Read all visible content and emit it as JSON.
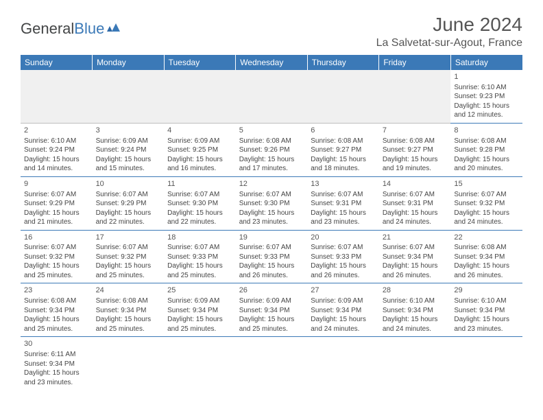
{
  "logo": {
    "text1": "General",
    "text2": "Blue"
  },
  "title": "June 2024",
  "location": "La Salvetat-sur-Agout, France",
  "colors": {
    "header_bg": "#3b79b7",
    "header_fg": "#ffffff",
    "text": "#444444",
    "blank_bg": "#f0f0f0"
  },
  "daynames": [
    "Sunday",
    "Monday",
    "Tuesday",
    "Wednesday",
    "Thursday",
    "Friday",
    "Saturday"
  ],
  "weeks": [
    [
      null,
      null,
      null,
      null,
      null,
      null,
      {
        "n": "1",
        "sr": "Sunrise: 6:10 AM",
        "ss": "Sunset: 9:23 PM",
        "d1": "Daylight: 15 hours",
        "d2": "and 12 minutes."
      }
    ],
    [
      {
        "n": "2",
        "sr": "Sunrise: 6:10 AM",
        "ss": "Sunset: 9:24 PM",
        "d1": "Daylight: 15 hours",
        "d2": "and 14 minutes."
      },
      {
        "n": "3",
        "sr": "Sunrise: 6:09 AM",
        "ss": "Sunset: 9:24 PM",
        "d1": "Daylight: 15 hours",
        "d2": "and 15 minutes."
      },
      {
        "n": "4",
        "sr": "Sunrise: 6:09 AM",
        "ss": "Sunset: 9:25 PM",
        "d1": "Daylight: 15 hours",
        "d2": "and 16 minutes."
      },
      {
        "n": "5",
        "sr": "Sunrise: 6:08 AM",
        "ss": "Sunset: 9:26 PM",
        "d1": "Daylight: 15 hours",
        "d2": "and 17 minutes."
      },
      {
        "n": "6",
        "sr": "Sunrise: 6:08 AM",
        "ss": "Sunset: 9:27 PM",
        "d1": "Daylight: 15 hours",
        "d2": "and 18 minutes."
      },
      {
        "n": "7",
        "sr": "Sunrise: 6:08 AM",
        "ss": "Sunset: 9:27 PM",
        "d1": "Daylight: 15 hours",
        "d2": "and 19 minutes."
      },
      {
        "n": "8",
        "sr": "Sunrise: 6:08 AM",
        "ss": "Sunset: 9:28 PM",
        "d1": "Daylight: 15 hours",
        "d2": "and 20 minutes."
      }
    ],
    [
      {
        "n": "9",
        "sr": "Sunrise: 6:07 AM",
        "ss": "Sunset: 9:29 PM",
        "d1": "Daylight: 15 hours",
        "d2": "and 21 minutes."
      },
      {
        "n": "10",
        "sr": "Sunrise: 6:07 AM",
        "ss": "Sunset: 9:29 PM",
        "d1": "Daylight: 15 hours",
        "d2": "and 22 minutes."
      },
      {
        "n": "11",
        "sr": "Sunrise: 6:07 AM",
        "ss": "Sunset: 9:30 PM",
        "d1": "Daylight: 15 hours",
        "d2": "and 22 minutes."
      },
      {
        "n": "12",
        "sr": "Sunrise: 6:07 AM",
        "ss": "Sunset: 9:30 PM",
        "d1": "Daylight: 15 hours",
        "d2": "and 23 minutes."
      },
      {
        "n": "13",
        "sr": "Sunrise: 6:07 AM",
        "ss": "Sunset: 9:31 PM",
        "d1": "Daylight: 15 hours",
        "d2": "and 23 minutes."
      },
      {
        "n": "14",
        "sr": "Sunrise: 6:07 AM",
        "ss": "Sunset: 9:31 PM",
        "d1": "Daylight: 15 hours",
        "d2": "and 24 minutes."
      },
      {
        "n": "15",
        "sr": "Sunrise: 6:07 AM",
        "ss": "Sunset: 9:32 PM",
        "d1": "Daylight: 15 hours",
        "d2": "and 24 minutes."
      }
    ],
    [
      {
        "n": "16",
        "sr": "Sunrise: 6:07 AM",
        "ss": "Sunset: 9:32 PM",
        "d1": "Daylight: 15 hours",
        "d2": "and 25 minutes."
      },
      {
        "n": "17",
        "sr": "Sunrise: 6:07 AM",
        "ss": "Sunset: 9:32 PM",
        "d1": "Daylight: 15 hours",
        "d2": "and 25 minutes."
      },
      {
        "n": "18",
        "sr": "Sunrise: 6:07 AM",
        "ss": "Sunset: 9:33 PM",
        "d1": "Daylight: 15 hours",
        "d2": "and 25 minutes."
      },
      {
        "n": "19",
        "sr": "Sunrise: 6:07 AM",
        "ss": "Sunset: 9:33 PM",
        "d1": "Daylight: 15 hours",
        "d2": "and 26 minutes."
      },
      {
        "n": "20",
        "sr": "Sunrise: 6:07 AM",
        "ss": "Sunset: 9:33 PM",
        "d1": "Daylight: 15 hours",
        "d2": "and 26 minutes."
      },
      {
        "n": "21",
        "sr": "Sunrise: 6:07 AM",
        "ss": "Sunset: 9:34 PM",
        "d1": "Daylight: 15 hours",
        "d2": "and 26 minutes."
      },
      {
        "n": "22",
        "sr": "Sunrise: 6:08 AM",
        "ss": "Sunset: 9:34 PM",
        "d1": "Daylight: 15 hours",
        "d2": "and 26 minutes."
      }
    ],
    [
      {
        "n": "23",
        "sr": "Sunrise: 6:08 AM",
        "ss": "Sunset: 9:34 PM",
        "d1": "Daylight: 15 hours",
        "d2": "and 25 minutes."
      },
      {
        "n": "24",
        "sr": "Sunrise: 6:08 AM",
        "ss": "Sunset: 9:34 PM",
        "d1": "Daylight: 15 hours",
        "d2": "and 25 minutes."
      },
      {
        "n": "25",
        "sr": "Sunrise: 6:09 AM",
        "ss": "Sunset: 9:34 PM",
        "d1": "Daylight: 15 hours",
        "d2": "and 25 minutes."
      },
      {
        "n": "26",
        "sr": "Sunrise: 6:09 AM",
        "ss": "Sunset: 9:34 PM",
        "d1": "Daylight: 15 hours",
        "d2": "and 25 minutes."
      },
      {
        "n": "27",
        "sr": "Sunrise: 6:09 AM",
        "ss": "Sunset: 9:34 PM",
        "d1": "Daylight: 15 hours",
        "d2": "and 24 minutes."
      },
      {
        "n": "28",
        "sr": "Sunrise: 6:10 AM",
        "ss": "Sunset: 9:34 PM",
        "d1": "Daylight: 15 hours",
        "d2": "and 24 minutes."
      },
      {
        "n": "29",
        "sr": "Sunrise: 6:10 AM",
        "ss": "Sunset: 9:34 PM",
        "d1": "Daylight: 15 hours",
        "d2": "and 23 minutes."
      }
    ],
    [
      {
        "n": "30",
        "sr": "Sunrise: 6:11 AM",
        "ss": "Sunset: 9:34 PM",
        "d1": "Daylight: 15 hours",
        "d2": "and 23 minutes."
      },
      null,
      null,
      null,
      null,
      null,
      null
    ]
  ]
}
